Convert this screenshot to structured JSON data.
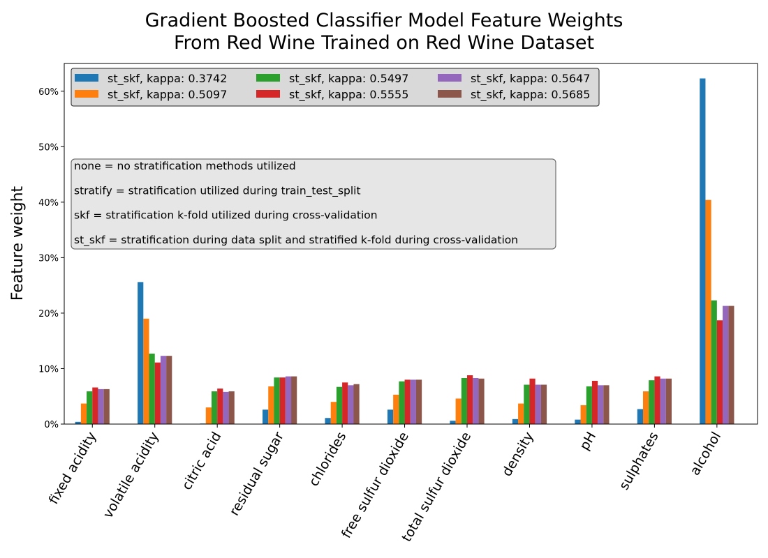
{
  "chart_data": {
    "type": "bar",
    "title_lines": [
      "Gradient Boosted Classifier Model Feature Weights",
      "From Red Wine Trained on Red Wine Dataset"
    ],
    "ylabel": "Feature weight",
    "ylim": [
      0,
      65
    ],
    "y_ticks": [
      0,
      10,
      20,
      30,
      40,
      50,
      60
    ],
    "y_tick_labels": [
      "0%",
      "10%",
      "20%",
      "30%",
      "40%",
      "50%",
      "60%"
    ],
    "categories": [
      "fixed acidity",
      "volatile acidity",
      "citric acid",
      "residual sugar",
      "chlorides",
      "free sulfur dioxide",
      "total sulfur dioxide",
      "density",
      "pH",
      "sulphates",
      "alcohol"
    ],
    "legend_position": "top-left",
    "series": [
      {
        "name": "st_skf, kappa: 0.3742",
        "color": "#1f77b4",
        "values": [
          0.4,
          25.6,
          0.1,
          2.6,
          1.1,
          2.6,
          0.6,
          0.9,
          0.8,
          2.7,
          62.3
        ]
      },
      {
        "name": "st_skf, kappa: 0.5097",
        "color": "#ff7f0e",
        "values": [
          3.7,
          19.0,
          3.0,
          6.8,
          4.0,
          5.3,
          4.6,
          3.7,
          3.4,
          5.9,
          40.4
        ]
      },
      {
        "name": "st_skf, kappa: 0.5497",
        "color": "#2ca02c",
        "values": [
          5.9,
          12.7,
          5.9,
          8.4,
          6.7,
          7.7,
          8.3,
          7.1,
          6.8,
          7.9,
          22.3
        ]
      },
      {
        "name": "st_skf, kappa: 0.5555",
        "color": "#d62728",
        "values": [
          6.6,
          11.1,
          6.4,
          8.4,
          7.5,
          8.0,
          8.8,
          8.2,
          7.8,
          8.6,
          18.7
        ]
      },
      {
        "name": "st_skf, kappa: 0.5647",
        "color": "#9467bd",
        "values": [
          6.3,
          12.3,
          5.8,
          8.6,
          7.0,
          8.0,
          8.3,
          7.1,
          7.0,
          8.2,
          21.3
        ]
      },
      {
        "name": "st_skf, kappa: 0.5685",
        "color": "#8c564b",
        "values": [
          6.3,
          12.3,
          5.9,
          8.6,
          7.2,
          8.0,
          8.2,
          7.1,
          7.0,
          8.2,
          21.3
        ]
      }
    ],
    "annotation_lines": [
      "none = no stratification methods utilized",
      "stratify = stratification utilized during train_test_split",
      "skf = stratification k-fold utilized during cross-validation",
      "st_skf = stratification during data split and stratified k-fold during cross-validation"
    ]
  }
}
